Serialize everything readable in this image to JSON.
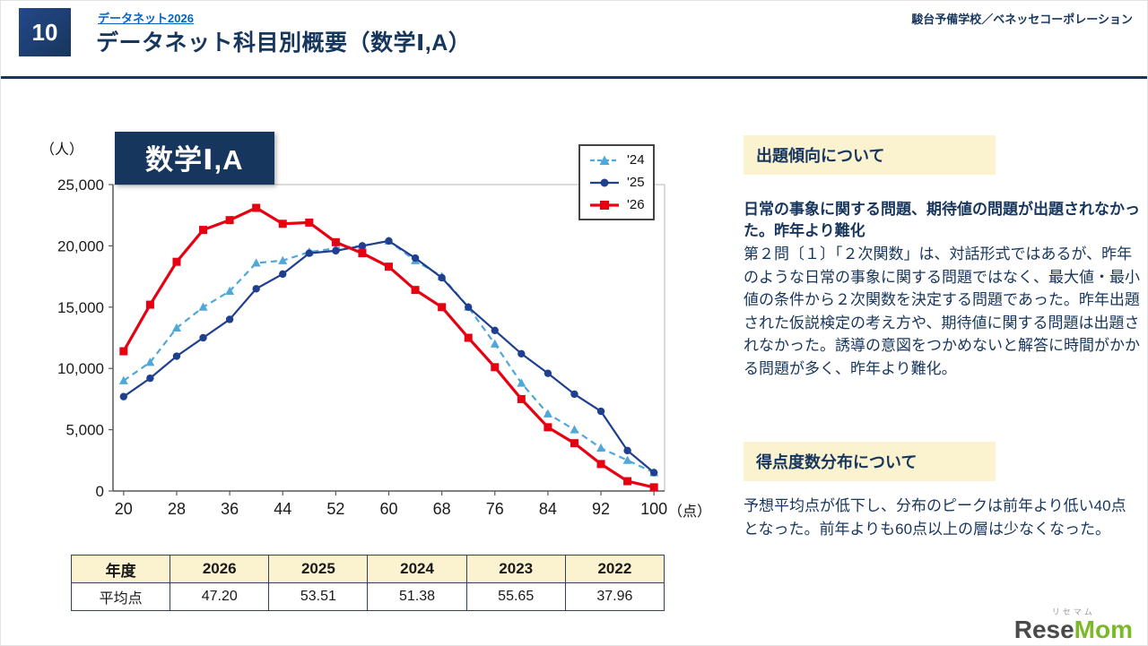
{
  "colors": {
    "navy": "#17365D",
    "link_blue": "#0563C1",
    "cream": "#FBF2D0",
    "red": "#E60012",
    "series_24_blue": "#4FA8D8",
    "series_25_navy": "#1F3F8F"
  },
  "header": {
    "slide_number": "10",
    "breadcrumb": "データネット2026",
    "title": "データネット科目別概要（数学Ⅰ,A）",
    "organization": "駿台予備学校／ベネッセコーポレーション"
  },
  "chart": {
    "title": "数学Ⅰ,A",
    "y_unit": "（人）",
    "x_unit": "（点）"
  },
  "chart_data": {
    "type": "line",
    "title": "数学Ⅰ,A",
    "xlabel": "（点）",
    "ylabel": "（人）",
    "xlim": [
      20,
      100
    ],
    "ylim": [
      0,
      25000
    ],
    "xticks": [
      20,
      28,
      36,
      44,
      52,
      60,
      68,
      76,
      84,
      92,
      100
    ],
    "yticks": [
      0,
      5000,
      10000,
      15000,
      20000,
      25000
    ],
    "grid": false,
    "legend_position": "top-right",
    "x": [
      20,
      24,
      28,
      32,
      36,
      40,
      44,
      48,
      52,
      56,
      60,
      64,
      68,
      72,
      76,
      80,
      84,
      88,
      92,
      96,
      100
    ],
    "series": [
      {
        "name": "'24",
        "color": "#4FA8D8",
        "marker": "triangle",
        "dashed": true,
        "stroke_width": 2.2,
        "values": [
          9000,
          10500,
          13300,
          15000,
          16300,
          18600,
          18800,
          19500,
          19800,
          20000,
          20400,
          18800,
          17500,
          15000,
          12000,
          8800,
          6300,
          5000,
          3500,
          2500,
          1500
        ]
      },
      {
        "name": "'25",
        "color": "#1F3F8F",
        "marker": "circle",
        "dashed": false,
        "stroke_width": 2.2,
        "values": [
          7700,
          9200,
          11000,
          12500,
          14000,
          16500,
          17700,
          19400,
          19600,
          20000,
          20400,
          19000,
          17400,
          15000,
          13100,
          11200,
          9600,
          7900,
          6500,
          3300,
          1500
        ]
      },
      {
        "name": "'26",
        "color": "#E60012",
        "marker": "square",
        "dashed": false,
        "stroke_width": 3.2,
        "values": [
          11400,
          15200,
          18700,
          21300,
          22100,
          23100,
          21800,
          21900,
          20300,
          19400,
          18300,
          16400,
          15000,
          12500,
          10100,
          7500,
          5200,
          3900,
          2200,
          800,
          300
        ]
      }
    ]
  },
  "table": {
    "headers": [
      "年度",
      "2026",
      "2025",
      "2024",
      "2023",
      "2022"
    ],
    "row_label": "平均点",
    "values": [
      "47.20",
      "53.51",
      "51.38",
      "55.65",
      "37.96"
    ]
  },
  "panels": [
    {
      "heading": "出題傾向について",
      "lead": "日常の事象に関する問題、期待値の問題が出題されなかった。昨年より難化",
      "body": "第２問〔１〕「２次関数」は、対話形式ではあるが、昨年のような日常の事象に関する問題ではなく、最大値・最小値の条件から２次関数を決定する問題であった。昨年出題された仮説検定の考え方や、期待値に関する問題は出題されなかった。誘導の意図をつかめないと解答に時間がかかる問題が多く、昨年より難化。"
    },
    {
      "heading": "得点度数分布について",
      "body": "予想平均点が低下し、分布のピークは前年より低い40点となった。前年よりも60点以上の層は少なくなった。"
    }
  ],
  "footer": {
    "logo_ruby": "リセマム",
    "logo_main_1": "Rese",
    "logo_main_2": "Mom"
  }
}
